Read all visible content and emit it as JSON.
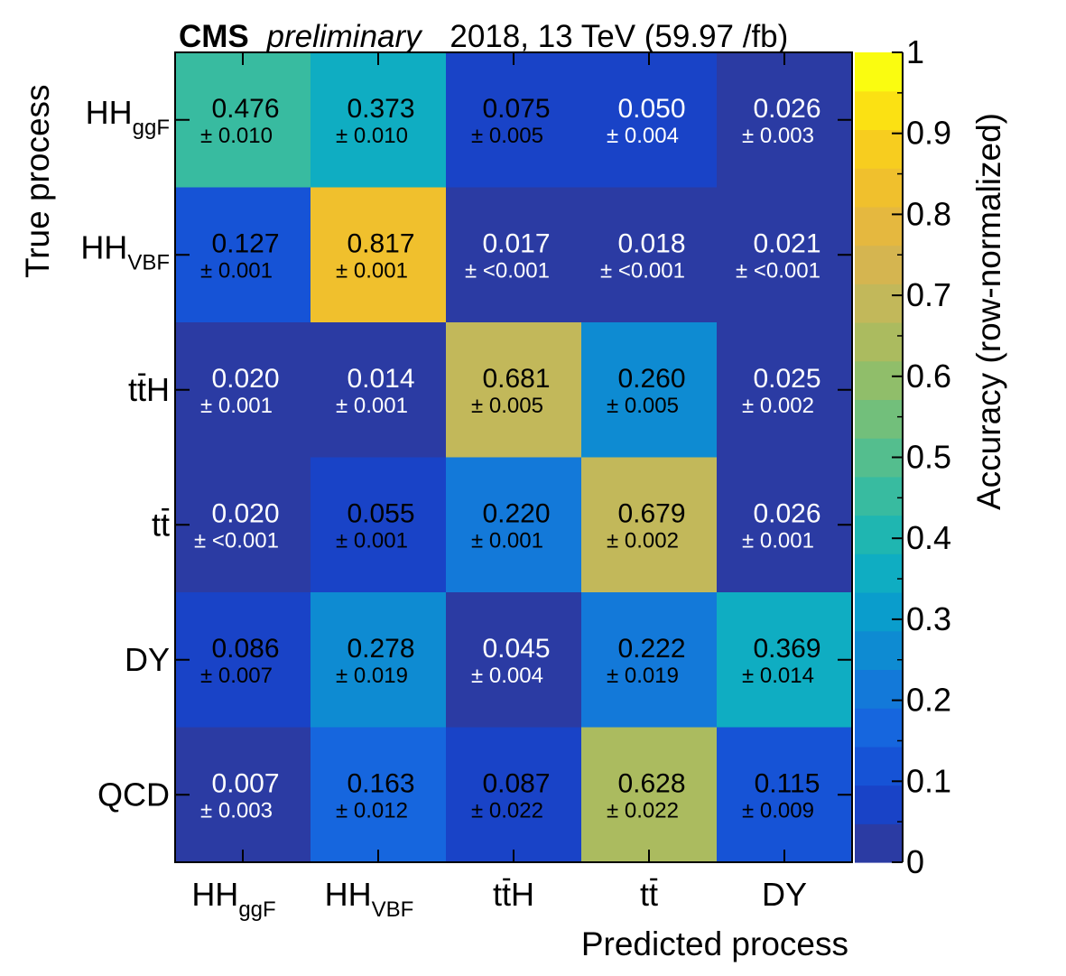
{
  "header": {
    "experiment": "CMS",
    "status": "preliminary",
    "conditions": "2018, 13 TeV (59.97 /fb)"
  },
  "chart_data": {
    "type": "heatmap",
    "xlabel": "Predicted process",
    "ylabel": "True process",
    "zlabel": "Accuracy (row-normalized)",
    "zlim": [
      0,
      1
    ],
    "z_ticks": [
      "0",
      "0.1",
      "0.2",
      "0.3",
      "0.4",
      "0.5",
      "0.6",
      "0.7",
      "0.8",
      "0.9",
      "1"
    ],
    "columns": [
      {
        "base": "HH",
        "sub": "ggF",
        "bar": false
      },
      {
        "base": "HH",
        "sub": "VBF",
        "bar": false
      },
      {
        "base": "ttH",
        "sub": "",
        "bar": true
      },
      {
        "base": "tt",
        "sub": "",
        "bar": true
      },
      {
        "base": "DY",
        "sub": "",
        "bar": false
      }
    ],
    "rows": [
      {
        "base": "HH",
        "sub": "ggF",
        "bar": false
      },
      {
        "base": "HH",
        "sub": "VBF",
        "bar": false
      },
      {
        "base": "ttH",
        "sub": "",
        "bar": true
      },
      {
        "base": "tt",
        "sub": "",
        "bar": true
      },
      {
        "base": "DY",
        "sub": "",
        "bar": false
      },
      {
        "base": "QCD",
        "sub": "",
        "bar": false
      }
    ],
    "values": [
      [
        0.476,
        0.373,
        0.075,
        0.05,
        0.026
      ],
      [
        0.127,
        0.817,
        0.017,
        0.018,
        0.021
      ],
      [
        0.02,
        0.014,
        0.681,
        0.26,
        0.025
      ],
      [
        0.02,
        0.055,
        0.22,
        0.679,
        0.026
      ],
      [
        0.086,
        0.278,
        0.045,
        0.222,
        0.369
      ],
      [
        0.007,
        0.163,
        0.087,
        0.628,
        0.115
      ]
    ],
    "value_labels": [
      [
        "0.476",
        "0.373",
        "0.075",
        "0.050",
        "0.026"
      ],
      [
        "0.127",
        "0.817",
        "0.017",
        "0.018",
        "0.021"
      ],
      [
        "0.020",
        "0.014",
        "0.681",
        "0.260",
        "0.025"
      ],
      [
        "0.020",
        "0.055",
        "0.220",
        "0.679",
        "0.026"
      ],
      [
        "0.086",
        "0.278",
        "0.045",
        "0.222",
        "0.369"
      ],
      [
        "0.007",
        "0.163",
        "0.087",
        "0.628",
        "0.115"
      ]
    ],
    "uncertainties": [
      [
        "± 0.010",
        "± 0.010",
        "± 0.005",
        "± 0.004",
        "± 0.003"
      ],
      [
        "± 0.001",
        "± 0.001",
        "± <0.001",
        "± <0.001",
        "± <0.001"
      ],
      [
        "± 0.001",
        "± 0.001",
        "± 0.005",
        "± 0.005",
        "± 0.002"
      ],
      [
        "± <0.001",
        "± 0.001",
        "± 0.001",
        "± 0.002",
        "± 0.001"
      ],
      [
        "± 0.007",
        "± 0.019",
        "± 0.004",
        "± 0.019",
        "± 0.014"
      ],
      [
        "± 0.003",
        "± 0.012",
        "± 0.022",
        "± 0.022",
        "± 0.009"
      ]
    ],
    "text_colors": [
      [
        "#000000",
        "#000000",
        "#000000",
        "#ffffff",
        "#ffffff"
      ],
      [
        "#000000",
        "#000000",
        "#ffffff",
        "#ffffff",
        "#ffffff"
      ],
      [
        "#ffffff",
        "#ffffff",
        "#000000",
        "#000000",
        "#ffffff"
      ],
      [
        "#ffffff",
        "#000000",
        "#000000",
        "#000000",
        "#ffffff"
      ],
      [
        "#000000",
        "#000000",
        "#ffffff",
        "#000000",
        "#000000"
      ],
      [
        "#ffffff",
        "#000000",
        "#000000",
        "#000000",
        "#000000"
      ]
    ],
    "palette": [
      "#2b3ba3",
      "#1943c7",
      "#1653d6",
      "#1666de",
      "#1379d9",
      "#0e8bd2",
      "#0a9dcc",
      "#0fadc2",
      "#1fb6b1",
      "#38bba0",
      "#54be8e",
      "#72bf7b",
      "#90be6a",
      "#abbb5f",
      "#c2b85a",
      "#d5b550",
      "#e5b83f",
      "#f0c02d",
      "#f7cd1f",
      "#fbe113",
      "#fafc10"
    ]
  }
}
